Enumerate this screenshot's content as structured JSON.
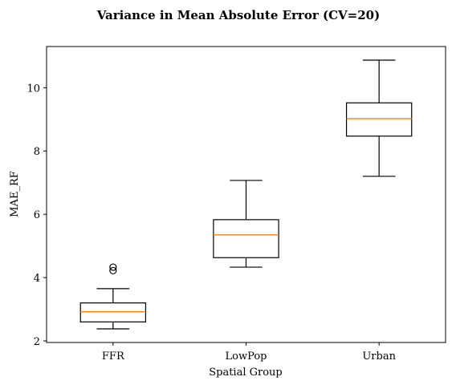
{
  "chart_data": {
    "type": "box",
    "title": "Variance in Mean Absolute Error (CV=20)",
    "xlabel": "Spatial Group",
    "ylabel": "MAE_RF",
    "ylim": [
      1.95,
      11.3
    ],
    "yticks": [
      2,
      4,
      6,
      8,
      10
    ],
    "grid": false,
    "categories": [
      "FFR",
      "LowPop",
      "Urban"
    ],
    "boxes": [
      {
        "category": "FFR",
        "whisker_low": 2.38,
        "q1": 2.6,
        "median": 2.92,
        "q3": 3.2,
        "whisker_high": 3.65,
        "outliers": [
          4.22,
          4.33
        ]
      },
      {
        "category": "LowPop",
        "whisker_low": 4.33,
        "q1": 4.63,
        "median": 5.35,
        "q3": 5.83,
        "whisker_high": 7.07,
        "outliers": []
      },
      {
        "category": "Urban",
        "whisker_low": 7.2,
        "q1": 8.47,
        "median": 9.02,
        "q3": 9.52,
        "whisker_high": 10.87,
        "outliers": []
      }
    ],
    "colors": {
      "box": "#000000",
      "median": "#ff7f0e",
      "background": "#ffffff"
    }
  }
}
